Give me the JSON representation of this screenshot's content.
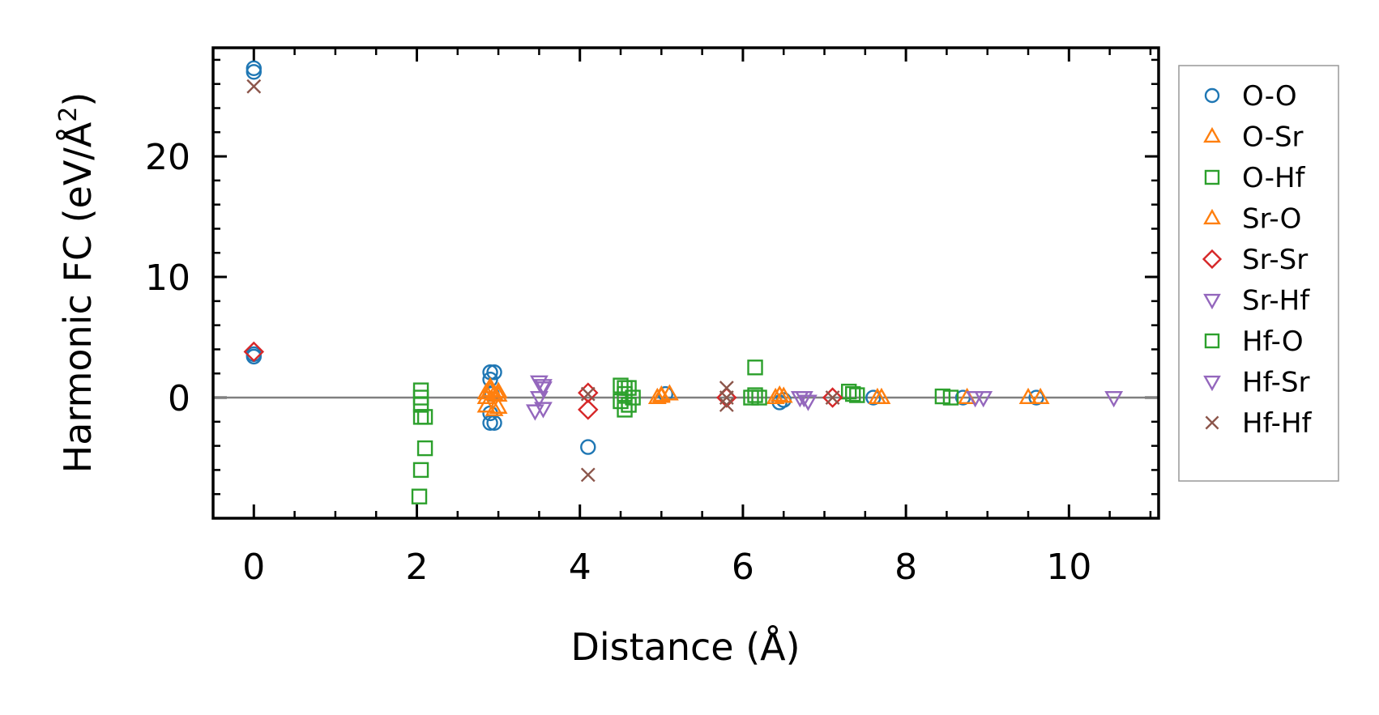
{
  "chart_data": {
    "type": "scatter",
    "title": "",
    "xlabel": "Distance (Å)",
    "ylabel_main": "Harmonic FC (eV/Å",
    "ylabel_sup": "2",
    "ylabel_close": ")",
    "xlim": [
      -0.5,
      11.1
    ],
    "ylim": [
      -10,
      29
    ],
    "xticks": [
      0,
      2,
      4,
      6,
      8,
      10
    ],
    "xtick_labels": [
      "0",
      "2",
      "4",
      "6",
      "8",
      "10"
    ],
    "yticks": [
      0,
      10,
      20
    ],
    "ytick_labels": [
      "0",
      "10",
      "20"
    ],
    "grid": false,
    "zero_line": true,
    "legend_position": "outside-right",
    "series": [
      {
        "name": "O-O",
        "marker": "circle",
        "color": "#1f77b4",
        "points": [
          [
            0,
            27.3
          ],
          [
            0,
            27.0
          ],
          [
            0,
            3.4
          ],
          [
            0,
            3.6
          ],
          [
            2.9,
            2.1
          ],
          [
            2.95,
            2.1
          ],
          [
            2.9,
            1.5
          ],
          [
            2.92,
            0.3
          ],
          [
            2.9,
            -1.3
          ],
          [
            2.9,
            -2.1
          ],
          [
            2.95,
            -2.1
          ],
          [
            4.1,
            -4.1
          ],
          [
            5.05,
            0.3
          ],
          [
            6.45,
            -0.4
          ],
          [
            6.5,
            -0.2
          ],
          [
            7.6,
            0.0
          ],
          [
            8.7,
            0.0
          ],
          [
            9.6,
            0.0
          ]
        ]
      },
      {
        "name": "O-Sr",
        "marker": "triangle-up",
        "color": "#ff7f0e",
        "points": [
          [
            2.85,
            0.0
          ],
          [
            2.9,
            0.6
          ],
          [
            2.95,
            0.3
          ],
          [
            3.0,
            0.5
          ],
          [
            2.85,
            -0.7
          ],
          [
            2.95,
            -1.0
          ],
          [
            3.0,
            -0.8
          ],
          [
            4.95,
            0.0
          ],
          [
            5.0,
            0.2
          ],
          [
            5.1,
            0.3
          ],
          [
            6.4,
            0.0
          ],
          [
            6.5,
            0.1
          ],
          [
            7.65,
            0.0
          ],
          [
            8.75,
            0.0
          ],
          [
            9.5,
            0.0
          ],
          [
            9.65,
            0.0
          ]
        ]
      },
      {
        "name": "O-Hf",
        "marker": "square",
        "color": "#2ca02c",
        "points": [
          [
            2.05,
            0.6
          ],
          [
            2.05,
            0.0
          ],
          [
            2.05,
            -0.6
          ],
          [
            2.05,
            -1.6
          ],
          [
            2.1,
            -1.6
          ],
          [
            2.05,
            -6.0
          ],
          [
            2.1,
            -4.2
          ],
          [
            2.03,
            -8.2
          ],
          [
            4.5,
            1.0
          ],
          [
            4.6,
            0.8
          ],
          [
            4.55,
            0.3
          ],
          [
            4.5,
            -0.3
          ],
          [
            4.6,
            -0.6
          ],
          [
            4.55,
            -1.0
          ],
          [
            6.15,
            2.5
          ],
          [
            6.1,
            0.0
          ],
          [
            6.2,
            0.0
          ],
          [
            7.3,
            0.5
          ],
          [
            7.4,
            0.2
          ],
          [
            8.45,
            0.1
          ],
          [
            8.55,
            0.0
          ]
        ]
      },
      {
        "name": "Sr-O",
        "marker": "triangle-up",
        "color": "#ff7f0e",
        "points": [
          [
            2.9,
            0.9
          ],
          [
            3.0,
            0.2
          ],
          [
            2.85,
            0.4
          ],
          [
            5.0,
            0.1
          ],
          [
            6.45,
            0.2
          ],
          [
            7.7,
            0.0
          ]
        ]
      },
      {
        "name": "Sr-Sr",
        "marker": "diamond",
        "color": "#d62728",
        "points": [
          [
            0,
            3.8
          ],
          [
            4.1,
            0.4
          ],
          [
            4.1,
            -1.0
          ],
          [
            5.8,
            0.0
          ],
          [
            7.1,
            0.0
          ]
        ]
      },
      {
        "name": "Sr-Hf",
        "marker": "triangle-down",
        "color": "#9467bd",
        "points": [
          [
            3.5,
            1.3
          ],
          [
            3.55,
            1.0
          ],
          [
            3.5,
            0.0
          ],
          [
            3.55,
            -0.9
          ],
          [
            3.45,
            -1.1
          ],
          [
            6.7,
            0.0
          ],
          [
            6.8,
            -0.3
          ],
          [
            8.85,
            0.0
          ]
        ]
      },
      {
        "name": "Hf-O",
        "marker": "square",
        "color": "#2ca02c",
        "points": [
          [
            4.55,
            0.8
          ],
          [
            4.65,
            0.0
          ],
          [
            6.15,
            0.2
          ],
          [
            7.35,
            0.3
          ]
        ]
      },
      {
        "name": "Hf-Sr",
        "marker": "triangle-down",
        "color": "#9467bd",
        "points": [
          [
            3.55,
            0.8
          ],
          [
            6.75,
            0.0
          ],
          [
            8.95,
            0.0
          ],
          [
            10.55,
            0.0
          ]
        ]
      },
      {
        "name": "Hf-Hf",
        "marker": "x",
        "color": "#8c564b",
        "points": [
          [
            0,
            25.8
          ],
          [
            4.1,
            0.3
          ],
          [
            4.1,
            -6.4
          ],
          [
            5.8,
            0.8
          ],
          [
            5.8,
            -0.6
          ],
          [
            5.8,
            0.0
          ],
          [
            7.1,
            0.0
          ]
        ]
      }
    ]
  }
}
